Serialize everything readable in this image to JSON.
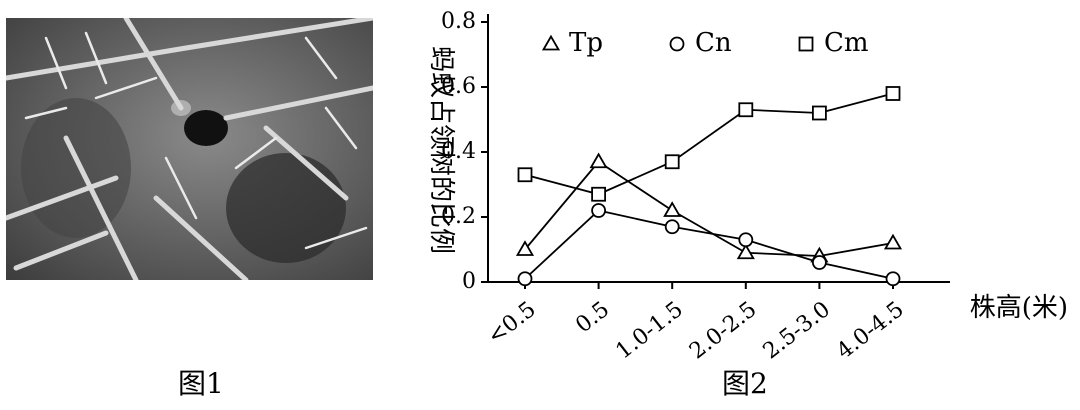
{
  "figure1": {
    "caption": "图1",
    "photo_icon": "ant-on-acacia-thorn-photo"
  },
  "figure2": {
    "caption": "图2"
  },
  "chart_data": {
    "type": "line",
    "categories": [
      "<0.5",
      "0.5",
      "1.0-1.5",
      "2.0-2.5",
      "2.5-3.0",
      "4.0-4.5"
    ],
    "series": [
      {
        "name": "Tp",
        "marker": "triangle",
        "values": [
          0.1,
          0.37,
          0.22,
          0.09,
          0.08,
          0.12
        ]
      },
      {
        "name": "Cn",
        "marker": "circle",
        "values": [
          0.01,
          0.22,
          0.17,
          0.13,
          0.06,
          0.01
        ]
      },
      {
        "name": "Cm",
        "marker": "square",
        "values": [
          0.33,
          0.27,
          0.37,
          0.53,
          0.52,
          0.58
        ]
      }
    ],
    "ylabel": "蚂蚁占领树的比例",
    "xlabel": "株高(米)",
    "ylim": [
      0,
      0.8
    ],
    "yticks": [
      0,
      0.2,
      0.4,
      0.6,
      0.8
    ],
    "ytick_labels": [
      "0",
      "0.2",
      "0.4",
      "0.6",
      "0.8"
    ],
    "legend_position": "top",
    "grid": false
  }
}
